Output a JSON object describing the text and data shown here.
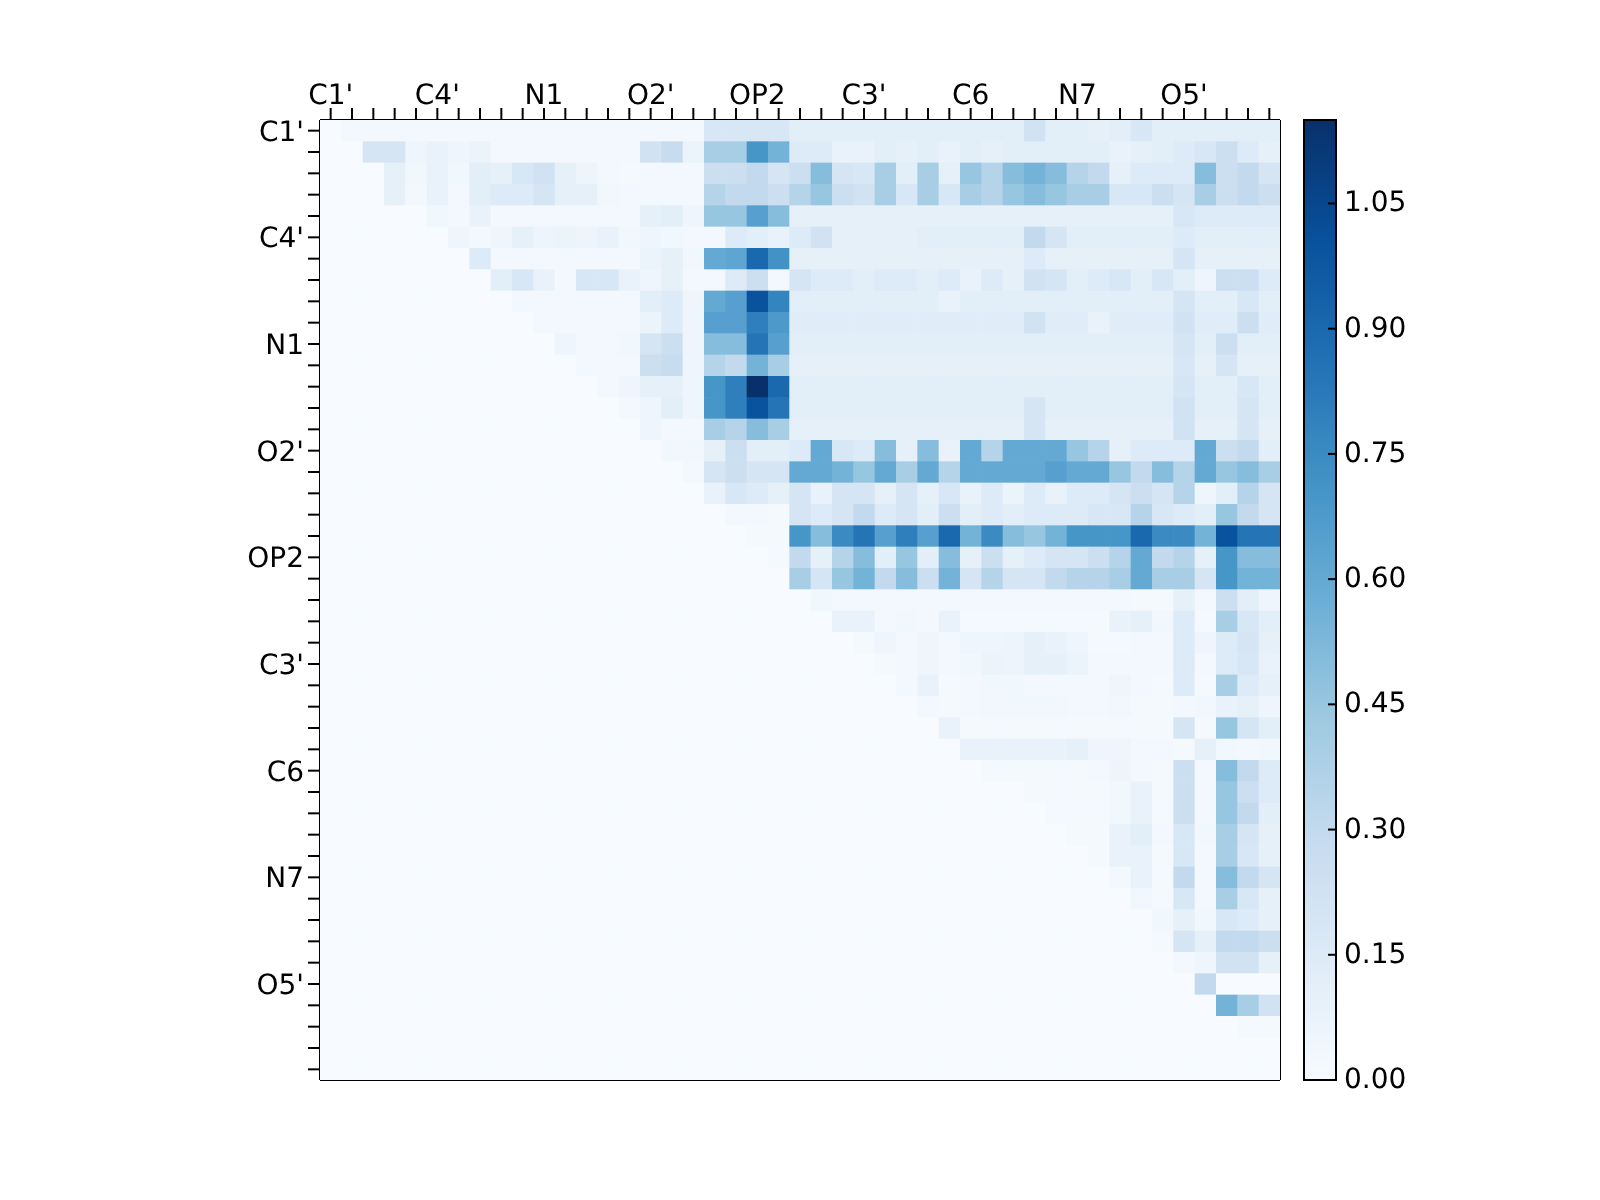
{
  "chart_data": {
    "type": "heatmap",
    "categories": [
      "C1'",
      null,
      null,
      null,
      null,
      "C4'",
      null,
      null,
      null,
      null,
      "N1",
      null,
      null,
      null,
      null,
      "O2'",
      null,
      null,
      null,
      null,
      "OP2",
      null,
      null,
      null,
      null,
      "C3'",
      null,
      null,
      null,
      null,
      "C6",
      null,
      null,
      null,
      null,
      "N7",
      null,
      null,
      null,
      null,
      "O5'",
      null,
      null,
      null,
      null
    ],
    "y_categories": [
      "C1'",
      null,
      null,
      null,
      null,
      "C4'",
      null,
      null,
      null,
      null,
      "N1",
      null,
      null,
      null,
      null,
      "O2'",
      null,
      null,
      null,
      null,
      "OP2",
      null,
      null,
      null,
      null,
      "C3'",
      null,
      null,
      null,
      null,
      "C6",
      null,
      null,
      null,
      null,
      "N7",
      null,
      null,
      null,
      null,
      "O5'",
      null,
      null,
      null,
      null
    ],
    "clim": [
      0,
      1.15
    ],
    "cticks": [
      {
        "value": 0,
        "label": "0.00"
      },
      {
        "value": 0.15,
        "label": "0.15"
      },
      {
        "value": 0.3,
        "label": "0.30"
      },
      {
        "value": 0.45,
        "label": "0.45"
      },
      {
        "value": 0.6,
        "label": "0.60"
      },
      {
        "value": 0.75,
        "label": "0.75"
      },
      {
        "value": 0.9,
        "label": "0.90"
      },
      {
        "value": 1.05,
        "label": "1.05"
      }
    ],
    "cells": [
      [
        0,
        0.03,
        0.03,
        0.03,
        0.03,
        0.03,
        0.03,
        0.03,
        0.03,
        0.03,
        0.03,
        0.03,
        0.03,
        0.03,
        0.03,
        0.03,
        0.03,
        0.03,
        0.18,
        0.18,
        0.18,
        0.18,
        0.12,
        0.12,
        0.12,
        0.12,
        0.12,
        0.12,
        0.12,
        0.12,
        0.12,
        0.12,
        0.12,
        0.22,
        0.12,
        0.12,
        0.1,
        0.12,
        0.18,
        0.12,
        0.12,
        0.12,
        0.12,
        0.12,
        0.12
      ],
      [
        0,
        0,
        0.2,
        0.2,
        0.05,
        0.08,
        0.05,
        0.07,
        0.03,
        0.03,
        0.03,
        0.03,
        0.03,
        0.03,
        0.03,
        0.22,
        0.28,
        0.07,
        0.4,
        0.4,
        0.7,
        0.55,
        0.15,
        0.15,
        0.08,
        0.08,
        0.12,
        0.1,
        0.12,
        0.08,
        0.12,
        0.1,
        0.12,
        0.12,
        0.12,
        0.12,
        0.12,
        0.08,
        0.1,
        0.12,
        0.15,
        0.18,
        0.25,
        0.15,
        0.1
      ],
      [
        0,
        0,
        0,
        0.1,
        0.04,
        0.08,
        0.04,
        0.12,
        0.1,
        0.18,
        0.22,
        0.1,
        0.06,
        0.03,
        0.02,
        0.03,
        0.03,
        0.03,
        0.25,
        0.25,
        0.3,
        0.2,
        0.25,
        0.5,
        0.2,
        0.18,
        0.4,
        0.12,
        0.4,
        0.1,
        0.45,
        0.35,
        0.5,
        0.55,
        0.5,
        0.35,
        0.3,
        0.1,
        0.15,
        0.15,
        0.15,
        0.5,
        0.25,
        0.3,
        0.2
      ],
      [
        0,
        0,
        0,
        0.1,
        0.03,
        0.08,
        0.03,
        0.12,
        0.15,
        0.15,
        0.2,
        0.1,
        0.1,
        0.04,
        0.03,
        0.03,
        0.03,
        0.03,
        0.35,
        0.3,
        0.3,
        0.25,
        0.35,
        0.45,
        0.25,
        0.22,
        0.4,
        0.18,
        0.4,
        0.18,
        0.4,
        0.35,
        0.45,
        0.5,
        0.45,
        0.4,
        0.4,
        0.18,
        0.18,
        0.25,
        0.2,
        0.4,
        0.25,
        0.3,
        0.25
      ],
      [
        0,
        0,
        0,
        0,
        0,
        0.04,
        0.03,
        0.08,
        0.03,
        0.03,
        0.03,
        0.03,
        0.03,
        0.03,
        0.03,
        0.1,
        0.12,
        0.05,
        0.45,
        0.45,
        0.65,
        0.5,
        0.1,
        0.1,
        0.1,
        0.1,
        0.1,
        0.1,
        0.1,
        0.1,
        0.1,
        0.1,
        0.1,
        0.1,
        0.1,
        0.1,
        0.1,
        0.1,
        0.1,
        0.1,
        0.18,
        0.15,
        0.15,
        0.15,
        0.15
      ],
      [
        0,
        0,
        0,
        0,
        0,
        0,
        0.05,
        0.03,
        0.05,
        0.1,
        0.06,
        0.07,
        0.06,
        0.08,
        0.04,
        0.05,
        0.04,
        0.03,
        0.03,
        0.15,
        0.12,
        0.08,
        0.15,
        0.22,
        0.1,
        0.1,
        0.1,
        0.1,
        0.12,
        0.12,
        0.12,
        0.12,
        0.12,
        0.3,
        0.2,
        0.12,
        0.12,
        0.12,
        0.12,
        0.12,
        0.15,
        0.12,
        0.12,
        0.12,
        0.12
      ],
      [
        0,
        0,
        0,
        0,
        0,
        0,
        0,
        0.15,
        0.03,
        0.03,
        0.03,
        0.03,
        0.03,
        0.03,
        0.03,
        0.07,
        0.1,
        0.04,
        0.6,
        0.62,
        0.9,
        0.72,
        0.1,
        0.1,
        0.1,
        0.1,
        0.1,
        0.1,
        0.1,
        0.1,
        0.1,
        0.1,
        0.1,
        0.15,
        0.1,
        0.1,
        0.1,
        0.1,
        0.1,
        0.1,
        0.2,
        0.1,
        0.1,
        0.1,
        0.1
      ],
      [
        0,
        0,
        0,
        0,
        0,
        0,
        0,
        0,
        0.12,
        0.18,
        0.08,
        0.03,
        0.18,
        0.18,
        0.08,
        0.05,
        0.1,
        0.03,
        0.03,
        0.15,
        0.25,
        0.03,
        0.2,
        0.15,
        0.15,
        0.12,
        0.15,
        0.15,
        0.12,
        0.15,
        0.08,
        0.15,
        0.1,
        0.22,
        0.2,
        0.12,
        0.15,
        0.18,
        0.12,
        0.18,
        0.12,
        0.05,
        0.25,
        0.25,
        0.15
      ],
      [
        0,
        0,
        0,
        0,
        0,
        0,
        0,
        0,
        0,
        0.03,
        0.03,
        0.03,
        0.03,
        0.03,
        0.03,
        0.12,
        0.15,
        0.05,
        0.6,
        0.65,
        1.0,
        0.78,
        0.12,
        0.12,
        0.12,
        0.12,
        0.12,
        0.12,
        0.12,
        0.08,
        0.12,
        0.12,
        0.12,
        0.12,
        0.12,
        0.12,
        0.12,
        0.12,
        0.12,
        0.12,
        0.2,
        0.12,
        0.12,
        0.18,
        0.12
      ],
      [
        0,
        0,
        0,
        0,
        0,
        0,
        0,
        0,
        0,
        0,
        0.03,
        0.03,
        0.03,
        0.03,
        0.03,
        0.07,
        0.15,
        0.05,
        0.65,
        0.65,
        0.8,
        0.68,
        0.13,
        0.13,
        0.13,
        0.13,
        0.13,
        0.13,
        0.13,
        0.13,
        0.13,
        0.13,
        0.13,
        0.22,
        0.13,
        0.13,
        0.08,
        0.13,
        0.13,
        0.13,
        0.22,
        0.13,
        0.13,
        0.25,
        0.13
      ],
      [
        0,
        0,
        0,
        0,
        0,
        0,
        0,
        0,
        0,
        0,
        0,
        0.05,
        0.03,
        0.03,
        0.04,
        0.2,
        0.25,
        0.05,
        0.5,
        0.5,
        0.85,
        0.65,
        0.12,
        0.12,
        0.12,
        0.12,
        0.12,
        0.12,
        0.12,
        0.12,
        0.12,
        0.12,
        0.12,
        0.12,
        0.12,
        0.12,
        0.12,
        0.12,
        0.12,
        0.12,
        0.2,
        0.12,
        0.25,
        0.12,
        0.12
      ],
      [
        0,
        0,
        0,
        0,
        0,
        0,
        0,
        0,
        0,
        0,
        0,
        0,
        0.03,
        0.03,
        0.03,
        0.25,
        0.28,
        0.05,
        0.35,
        0.3,
        0.55,
        0.4,
        0.1,
        0.1,
        0.1,
        0.1,
        0.1,
        0.1,
        0.1,
        0.1,
        0.1,
        0.1,
        0.1,
        0.1,
        0.1,
        0.1,
        0.1,
        0.1,
        0.1,
        0.1,
        0.18,
        0.1,
        0.2,
        0.1,
        0.1
      ],
      [
        0,
        0,
        0,
        0,
        0,
        0,
        0,
        0,
        0,
        0,
        0,
        0,
        0,
        0.03,
        0.05,
        0.1,
        0.1,
        0.05,
        0.7,
        0.8,
        1.15,
        0.9,
        0.12,
        0.12,
        0.12,
        0.12,
        0.12,
        0.12,
        0.12,
        0.12,
        0.12,
        0.12,
        0.12,
        0.12,
        0.12,
        0.12,
        0.12,
        0.12,
        0.12,
        0.12,
        0.2,
        0.12,
        0.12,
        0.18,
        0.12
      ],
      [
        0,
        0,
        0,
        0,
        0,
        0,
        0,
        0,
        0,
        0,
        0,
        0,
        0,
        0,
        0.03,
        0.05,
        0.12,
        0.05,
        0.7,
        0.8,
        1.0,
        0.85,
        0.12,
        0.12,
        0.12,
        0.12,
        0.12,
        0.12,
        0.12,
        0.12,
        0.12,
        0.12,
        0.12,
        0.2,
        0.12,
        0.12,
        0.12,
        0.12,
        0.12,
        0.12,
        0.22,
        0.12,
        0.12,
        0.2,
        0.12
      ],
      [
        0,
        0,
        0,
        0,
        0,
        0,
        0,
        0,
        0,
        0,
        0,
        0,
        0,
        0,
        0,
        0.05,
        0.03,
        0.03,
        0.4,
        0.35,
        0.5,
        0.4,
        0.1,
        0.1,
        0.1,
        0.1,
        0.1,
        0.1,
        0.1,
        0.1,
        0.1,
        0.1,
        0.1,
        0.2,
        0.1,
        0.1,
        0.1,
        0.1,
        0.1,
        0.1,
        0.22,
        0.1,
        0.1,
        0.2,
        0.1
      ],
      [
        0,
        0,
        0,
        0,
        0,
        0,
        0,
        0,
        0,
        0,
        0,
        0,
        0,
        0,
        0,
        0,
        0.04,
        0.04,
        0.1,
        0.25,
        0.12,
        0.12,
        0.15,
        0.6,
        0.18,
        0.15,
        0.5,
        0.1,
        0.5,
        0.08,
        0.6,
        0.35,
        0.6,
        0.6,
        0.6,
        0.45,
        0.35,
        0.1,
        0.15,
        0.15,
        0.15,
        0.6,
        0.25,
        0.3,
        0.12
      ],
      [
        0,
        0,
        0,
        0,
        0,
        0,
        0,
        0,
        0,
        0,
        0,
        0,
        0,
        0,
        0,
        0,
        0,
        0.03,
        0.2,
        0.25,
        0.2,
        0.2,
        0.6,
        0.6,
        0.55,
        0.45,
        0.6,
        0.4,
        0.6,
        0.35,
        0.6,
        0.6,
        0.6,
        0.6,
        0.65,
        0.6,
        0.6,
        0.45,
        0.3,
        0.5,
        0.35,
        0.6,
        0.45,
        0.5,
        0.4
      ],
      [
        0,
        0,
        0,
        0,
        0,
        0,
        0,
        0,
        0,
        0,
        0,
        0,
        0,
        0,
        0,
        0,
        0,
        0,
        0.08,
        0.18,
        0.15,
        0.1,
        0.2,
        0.08,
        0.2,
        0.2,
        0.1,
        0.2,
        0.1,
        0.18,
        0.08,
        0.15,
        0.07,
        0.15,
        0.08,
        0.15,
        0.15,
        0.2,
        0.25,
        0.2,
        0.35,
        0.05,
        0.12,
        0.35,
        0.2
      ],
      [
        0,
        0,
        0,
        0,
        0,
        0,
        0,
        0,
        0,
        0,
        0,
        0,
        0,
        0,
        0,
        0,
        0,
        0,
        0,
        0.03,
        0.03,
        0.02,
        0.2,
        0.15,
        0.2,
        0.3,
        0.15,
        0.2,
        0.12,
        0.25,
        0.12,
        0.15,
        0.12,
        0.15,
        0.15,
        0.15,
        0.18,
        0.18,
        0.35,
        0.18,
        0.15,
        0.12,
        0.45,
        0.3,
        0.2
      ],
      [
        0,
        0,
        0,
        0,
        0,
        0,
        0,
        0,
        0,
        0,
        0,
        0,
        0,
        0,
        0,
        0,
        0,
        0,
        0,
        0,
        0.02,
        0.02,
        0.7,
        0.5,
        0.75,
        0.85,
        0.65,
        0.8,
        0.65,
        0.9,
        0.55,
        0.75,
        0.5,
        0.45,
        0.55,
        0.7,
        0.7,
        0.7,
        0.9,
        0.75,
        0.75,
        0.55,
        1.0,
        0.85,
        0.85
      ],
      [
        0,
        0,
        0,
        0,
        0,
        0,
        0,
        0,
        0,
        0,
        0,
        0,
        0,
        0,
        0,
        0,
        0,
        0,
        0,
        0,
        0,
        0.02,
        0.3,
        0.1,
        0.35,
        0.5,
        0.12,
        0.45,
        0.12,
        0.5,
        0.1,
        0.25,
        0.1,
        0.15,
        0.2,
        0.2,
        0.25,
        0.35,
        0.6,
        0.3,
        0.35,
        0.1,
        0.7,
        0.5,
        0.5
      ],
      [
        0,
        0,
        0,
        0,
        0,
        0,
        0,
        0,
        0,
        0,
        0,
        0,
        0,
        0,
        0,
        0,
        0,
        0,
        0,
        0,
        0,
        0,
        0.4,
        0.2,
        0.45,
        0.55,
        0.3,
        0.5,
        0.25,
        0.55,
        0.2,
        0.35,
        0.2,
        0.2,
        0.3,
        0.35,
        0.35,
        0.4,
        0.6,
        0.4,
        0.4,
        0.2,
        0.7,
        0.55,
        0.55
      ],
      [
        0,
        0,
        0,
        0,
        0,
        0,
        0,
        0,
        0,
        0,
        0,
        0,
        0,
        0,
        0,
        0,
        0,
        0,
        0,
        0,
        0,
        0,
        0,
        0.04,
        0.03,
        0.03,
        0.03,
        0.03,
        0.03,
        0.03,
        0.03,
        0.03,
        0.03,
        0.03,
        0.03,
        0.03,
        0.03,
        0.03,
        0.02,
        0.02,
        0.1,
        0.03,
        0.25,
        0.12,
        0.05
      ],
      [
        0,
        0,
        0,
        0,
        0,
        0,
        0,
        0,
        0,
        0,
        0,
        0,
        0,
        0,
        0,
        0,
        0,
        0,
        0,
        0,
        0,
        0,
        0,
        0,
        0.08,
        0.08,
        0.03,
        0.04,
        0.03,
        0.08,
        0.02,
        0.02,
        0.02,
        0.02,
        0.02,
        0.02,
        0.02,
        0.08,
        0.1,
        0.04,
        0.15,
        0.02,
        0.4,
        0.18,
        0.12
      ],
      [
        0,
        0,
        0,
        0,
        0,
        0,
        0,
        0,
        0,
        0,
        0,
        0,
        0,
        0,
        0,
        0,
        0,
        0,
        0,
        0,
        0,
        0,
        0,
        0,
        0,
        0.02,
        0.05,
        0.03,
        0.05,
        0.03,
        0.05,
        0.05,
        0.06,
        0.1,
        0.08,
        0.05,
        0.02,
        0.02,
        0.03,
        0.03,
        0.15,
        0.05,
        0.15,
        0.2,
        0.1
      ],
      [
        0,
        0,
        0,
        0,
        0,
        0,
        0,
        0,
        0,
        0,
        0,
        0,
        0,
        0,
        0,
        0,
        0,
        0,
        0,
        0,
        0,
        0,
        0,
        0,
        0,
        0,
        0.02,
        0.03,
        0.05,
        0.03,
        0.04,
        0.07,
        0.06,
        0.1,
        0.1,
        0.07,
        0.03,
        0.03,
        0.03,
        0.03,
        0.15,
        0.03,
        0.15,
        0.18,
        0.08
      ],
      [
        0,
        0,
        0,
        0,
        0,
        0,
        0,
        0,
        0,
        0,
        0,
        0,
        0,
        0,
        0,
        0,
        0,
        0,
        0,
        0,
        0,
        0,
        0,
        0,
        0,
        0,
        0,
        0.03,
        0.08,
        0.02,
        0.03,
        0.04,
        0.04,
        0.03,
        0.03,
        0.03,
        0.03,
        0.05,
        0.03,
        0.02,
        0.15,
        0.02,
        0.4,
        0.15,
        0.1
      ],
      [
        0,
        0,
        0,
        0,
        0,
        0,
        0,
        0,
        0,
        0,
        0,
        0,
        0,
        0,
        0,
        0,
        0,
        0,
        0,
        0,
        0,
        0,
        0,
        0,
        0,
        0,
        0,
        0,
        0.03,
        0.02,
        0.03,
        0.04,
        0.04,
        0.04,
        0.04,
        0.03,
        0.03,
        0.04,
        0.02,
        0.02,
        0.03,
        0.04,
        0.08,
        0.1,
        0.05
      ],
      [
        0,
        0,
        0,
        0,
        0,
        0,
        0,
        0,
        0,
        0,
        0,
        0,
        0,
        0,
        0,
        0,
        0,
        0,
        0,
        0,
        0,
        0,
        0,
        0,
        0,
        0,
        0,
        0,
        0,
        0.08,
        0.02,
        0.02,
        0.02,
        0.02,
        0.02,
        0.02,
        0.02,
        0.02,
        0.02,
        0.02,
        0.2,
        0.02,
        0.45,
        0.2,
        0.12
      ],
      [
        0,
        0,
        0,
        0,
        0,
        0,
        0,
        0,
        0,
        0,
        0,
        0,
        0,
        0,
        0,
        0,
        0,
        0,
        0,
        0,
        0,
        0,
        0,
        0,
        0,
        0,
        0,
        0,
        0,
        0,
        0.08,
        0.08,
        0.08,
        0.08,
        0.08,
        0.1,
        0.05,
        0.05,
        0.03,
        0.03,
        0.02,
        0.1,
        0.04,
        0.03,
        0.04
      ],
      [
        0,
        0,
        0,
        0,
        0,
        0,
        0,
        0,
        0,
        0,
        0,
        0,
        0,
        0,
        0,
        0,
        0,
        0,
        0,
        0,
        0,
        0,
        0,
        0,
        0,
        0,
        0,
        0,
        0,
        0,
        0,
        0.02,
        0.02,
        0.02,
        0.02,
        0.02,
        0.03,
        0.06,
        0.03,
        0.02,
        0.25,
        0.03,
        0.5,
        0.3,
        0.15
      ],
      [
        0,
        0,
        0,
        0,
        0,
        0,
        0,
        0,
        0,
        0,
        0,
        0,
        0,
        0,
        0,
        0,
        0,
        0,
        0,
        0,
        0,
        0,
        0,
        0,
        0,
        0,
        0,
        0,
        0,
        0,
        0,
        0,
        0,
        0.02,
        0.02,
        0.02,
        0.02,
        0.04,
        0.08,
        0.02,
        0.25,
        0.03,
        0.45,
        0.25,
        0.15
      ],
      [
        0,
        0,
        0,
        0,
        0,
        0,
        0,
        0,
        0,
        0,
        0,
        0,
        0,
        0,
        0,
        0,
        0,
        0,
        0,
        0,
        0,
        0,
        0,
        0,
        0,
        0,
        0,
        0,
        0,
        0,
        0,
        0,
        0,
        0,
        0.02,
        0.02,
        0.02,
        0.04,
        0.08,
        0.02,
        0.25,
        0.03,
        0.45,
        0.3,
        0.12
      ],
      [
        0,
        0,
        0,
        0,
        0,
        0,
        0,
        0,
        0,
        0,
        0,
        0,
        0,
        0,
        0,
        0,
        0,
        0,
        0,
        0,
        0,
        0,
        0,
        0,
        0,
        0,
        0,
        0,
        0,
        0,
        0,
        0,
        0,
        0,
        0,
        0.02,
        0.02,
        0.08,
        0.12,
        0.03,
        0.18,
        0.04,
        0.4,
        0.2,
        0.1
      ],
      [
        0,
        0,
        0,
        0,
        0,
        0,
        0,
        0,
        0,
        0,
        0,
        0,
        0,
        0,
        0,
        0,
        0,
        0,
        0,
        0,
        0,
        0,
        0,
        0,
        0,
        0,
        0,
        0,
        0,
        0,
        0,
        0,
        0,
        0,
        0,
        0,
        0.02,
        0.08,
        0.08,
        0.02,
        0.18,
        0.03,
        0.4,
        0.18,
        0.1
      ],
      [
        0,
        0,
        0,
        0,
        0,
        0,
        0,
        0,
        0,
        0,
        0,
        0,
        0,
        0,
        0,
        0,
        0,
        0,
        0,
        0,
        0,
        0,
        0,
        0,
        0,
        0,
        0,
        0,
        0,
        0,
        0,
        0,
        0,
        0,
        0,
        0,
        0,
        0.03,
        0.08,
        0.02,
        0.3,
        0.03,
        0.5,
        0.3,
        0.2
      ],
      [
        0,
        0,
        0,
        0,
        0,
        0,
        0,
        0,
        0,
        0,
        0,
        0,
        0,
        0,
        0,
        0,
        0,
        0,
        0,
        0,
        0,
        0,
        0,
        0,
        0,
        0,
        0,
        0,
        0,
        0,
        0,
        0,
        0,
        0,
        0,
        0,
        0,
        0,
        0.04,
        0.02,
        0.18,
        0.03,
        0.4,
        0.18,
        0.1
      ],
      [
        0,
        0,
        0,
        0,
        0,
        0,
        0,
        0,
        0,
        0,
        0,
        0,
        0,
        0,
        0,
        0,
        0,
        0,
        0,
        0,
        0,
        0,
        0,
        0,
        0,
        0,
        0,
        0,
        0,
        0,
        0,
        0,
        0,
        0,
        0,
        0,
        0,
        0,
        0,
        0.04,
        0.1,
        0.04,
        0.18,
        0.15,
        0.1
      ],
      [
        0,
        0,
        0,
        0,
        0,
        0,
        0,
        0,
        0,
        0,
        0,
        0,
        0,
        0,
        0,
        0,
        0,
        0,
        0,
        0,
        0,
        0,
        0,
        0,
        0,
        0,
        0,
        0,
        0,
        0,
        0,
        0,
        0,
        0,
        0,
        0,
        0,
        0,
        0,
        0.02,
        0.2,
        0.1,
        0.3,
        0.3,
        0.25
      ],
      [
        0,
        0,
        0,
        0,
        0,
        0,
        0,
        0,
        0,
        0,
        0,
        0,
        0,
        0,
        0,
        0,
        0,
        0,
        0,
        0,
        0,
        0,
        0,
        0,
        0,
        0,
        0,
        0,
        0,
        0,
        0,
        0,
        0,
        0,
        0,
        0,
        0,
        0,
        0,
        0,
        0.03,
        0.05,
        0.22,
        0.22,
        0.1
      ],
      [
        0,
        0,
        0,
        0,
        0,
        0,
        0,
        0,
        0,
        0,
        0,
        0,
        0,
        0,
        0,
        0,
        0,
        0,
        0,
        0,
        0,
        0,
        0,
        0,
        0,
        0,
        0,
        0,
        0,
        0,
        0,
        0,
        0,
        0,
        0,
        0,
        0,
        0,
        0,
        0,
        0,
        0.3,
        0,
        0,
        0
      ],
      [
        0,
        0,
        0,
        0,
        0,
        0,
        0,
        0,
        0,
        0,
        0,
        0,
        0,
        0,
        0,
        0,
        0,
        0,
        0,
        0,
        0,
        0,
        0,
        0,
        0,
        0,
        0,
        0,
        0,
        0,
        0,
        0,
        0,
        0,
        0,
        0,
        0,
        0,
        0,
        0,
        0,
        0,
        0.55,
        0.4,
        0.22
      ],
      [
        0,
        0,
        0,
        0,
        0,
        0,
        0,
        0,
        0,
        0,
        0,
        0,
        0,
        0,
        0,
        0,
        0,
        0,
        0,
        0,
        0,
        0,
        0,
        0,
        0,
        0,
        0,
        0,
        0,
        0,
        0,
        0,
        0,
        0,
        0,
        0,
        0,
        0,
        0,
        0,
        0,
        0,
        0,
        0.02,
        0.02
      ],
      [
        0,
        0,
        0,
        0,
        0,
        0,
        0,
        0,
        0,
        0,
        0,
        0,
        0,
        0,
        0,
        0,
        0,
        0,
        0,
        0,
        0,
        0,
        0,
        0,
        0,
        0,
        0,
        0,
        0,
        0,
        0,
        0,
        0,
        0,
        0,
        0,
        0,
        0,
        0,
        0,
        0,
        0,
        0,
        0,
        0
      ],
      [
        0,
        0,
        0,
        0,
        0,
        0,
        0,
        0,
        0,
        0,
        0,
        0,
        0,
        0,
        0,
        0,
        0,
        0,
        0,
        0,
        0,
        0,
        0,
        0,
        0,
        0,
        0,
        0,
        0,
        0,
        0,
        0,
        0,
        0,
        0,
        0,
        0,
        0,
        0,
        0,
        0,
        0,
        0,
        0,
        0
      ]
    ]
  }
}
